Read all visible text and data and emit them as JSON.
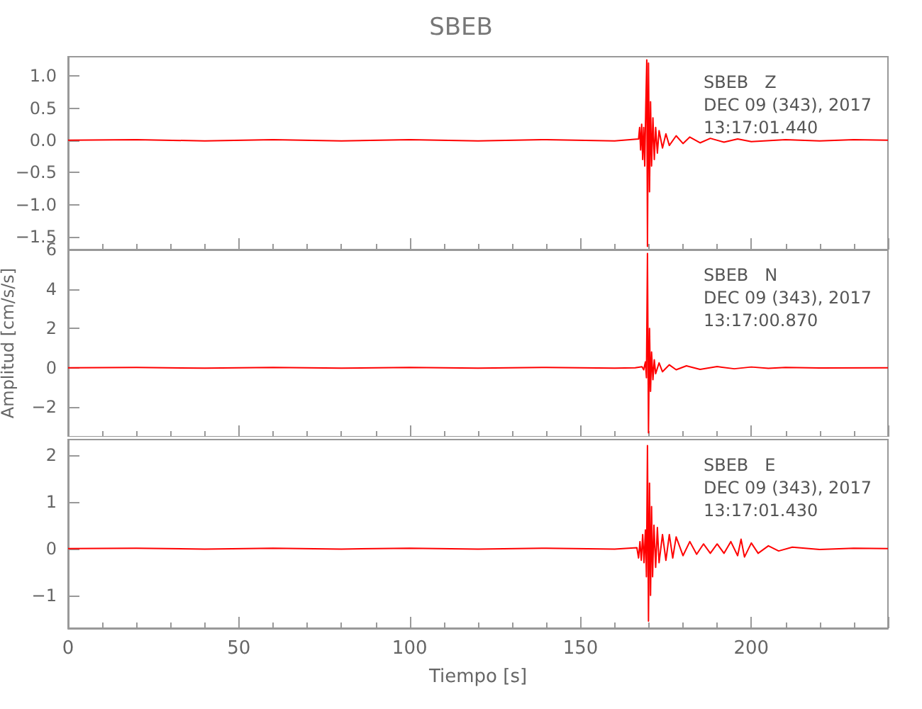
{
  "chart_data": [
    {
      "type": "line",
      "title": "SBEB",
      "tick_labels": "y",
      "xlim": [
        0,
        240
      ],
      "xticks": [
        0,
        50,
        100,
        150,
        200
      ],
      "ylim": [
        -1.7,
        1.3
      ],
      "yticks": [
        {
          "value": -1.5,
          "label": "−1.5"
        },
        {
          "value": -1,
          "label": "−1.0"
        },
        {
          "value": -0.5,
          "label": "−0.5"
        },
        {
          "value": 0,
          "label": "0.0"
        },
        {
          "value": 0.5,
          "label": "0.5"
        },
        {
          "value": 1,
          "label": "1.0"
        }
      ],
      "grid": false,
      "marker": "none",
      "line_style": "solid",
      "annotations": [
        "SBEB   Z",
        "DEC 09 (343), 2017",
        "13:17:01.440"
      ],
      "series": [
        {
          "color": "#ff0000",
          "x": [
            0,
            20,
            40,
            60,
            80,
            100,
            120,
            140,
            160,
            167,
            167.3,
            167.6,
            167.9,
            168.2,
            168.5,
            168.8,
            169.1,
            169.4,
            169.6,
            169.9,
            170.2,
            170.5,
            170.8,
            171.2,
            171.6,
            172,
            172.5,
            173,
            174,
            175,
            176,
            178,
            180,
            182,
            185,
            188,
            192,
            196,
            200,
            210,
            220,
            230,
            240
          ],
          "values": [
            0,
            0.01,
            -0.01,
            0.01,
            -0.01,
            0.01,
            -0.01,
            0.01,
            -0.01,
            0.02,
            0.2,
            -0.15,
            0.25,
            -0.3,
            0.2,
            -0.4,
            0.5,
            1.25,
            -1.65,
            1.2,
            -0.8,
            0.6,
            -0.4,
            0.35,
            -0.3,
            0.2,
            -0.2,
            0.15,
            -0.12,
            0.1,
            -0.08,
            0.07,
            -0.05,
            0.05,
            -0.04,
            0.03,
            -0.03,
            0.02,
            -0.02,
            0.01,
            -0.01,
            0.01,
            0
          ]
        }
      ]
    },
    {
      "type": "line",
      "ylabel": "Amplitud [cm/s/s]",
      "tick_labels": "y",
      "xlim": [
        0,
        240
      ],
      "xticks": [
        0,
        50,
        100,
        150,
        200
      ],
      "ylim": [
        -3.5,
        6
      ],
      "yticks": [
        {
          "value": -2,
          "label": "−2"
        },
        0,
        2,
        4,
        6
      ],
      "grid": false,
      "marker": "none",
      "line_style": "solid",
      "annotations": [
        "SBEB   N",
        "DEC 09 (343), 2017",
        "13:17:00.870"
      ],
      "series": [
        {
          "color": "#ff0000",
          "x": [
            0,
            20,
            40,
            60,
            80,
            100,
            120,
            140,
            160,
            166,
            168,
            168.5,
            169,
            169.3,
            169.6,
            169.9,
            170.2,
            170.5,
            170.8,
            171.2,
            171.6,
            172,
            173,
            174,
            176,
            178,
            181,
            185,
            190,
            195,
            200,
            205,
            210,
            220,
            240
          ],
          "values": [
            0,
            0.02,
            -0.02,
            0.02,
            -0.02,
            0.02,
            -0.02,
            0.02,
            -0.02,
            0,
            0.05,
            -0.1,
            0.3,
            -0.5,
            5.8,
            -3.3,
            2,
            -1.2,
            0.8,
            -0.6,
            0.4,
            -0.3,
            0.25,
            -0.2,
            0.15,
            -0.1,
            0.1,
            -0.08,
            0.06,
            -0.05,
            0.04,
            -0.03,
            0.02,
            -0.01,
            0
          ]
        }
      ]
    },
    {
      "type": "line",
      "xlabel": "Tiempo [s]",
      "xlim": [
        0,
        240
      ],
      "xticks": [
        0,
        50,
        100,
        150,
        200
      ],
      "ylim": [
        -1.7,
        2.33
      ],
      "yticks": [
        {
          "value": -1,
          "label": "−1"
        },
        0,
        1,
        2
      ],
      "grid": false,
      "marker": "none",
      "line_style": "solid",
      "annotations": [
        "SBEB   E",
        "DEC 09 (343), 2017",
        "13:17:01.430"
      ],
      "series": [
        {
          "color": "#ff0000",
          "x": [
            0,
            20,
            40,
            60,
            80,
            100,
            120,
            140,
            160,
            166.5,
            167,
            167.4,
            167.8,
            168.2,
            168.6,
            169,
            169.3,
            169.6,
            169.9,
            170.2,
            170.5,
            170.8,
            171.1,
            171.5,
            172,
            172.5,
            173,
            174,
            175,
            176,
            177,
            178,
            180,
            182,
            184,
            186,
            188,
            190,
            192,
            194,
            196,
            197,
            198,
            200,
            202,
            205,
            208,
            212,
            220,
            230,
            240
          ],
          "values": [
            0,
            0.01,
            -0.01,
            0.01,
            -0.01,
            0.01,
            -0.01,
            0.01,
            -0.01,
            0.02,
            -0.2,
            0.15,
            -0.25,
            0.3,
            -0.3,
            0.4,
            -0.6,
            2.2,
            -1.55,
            1.4,
            -1,
            0.9,
            -0.6,
            0.5,
            -0.4,
            0.45,
            -0.3,
            0.3,
            -0.25,
            0.3,
            -0.2,
            0.25,
            -0.15,
            0.15,
            -0.12,
            0.1,
            -0.1,
            0.1,
            -0.1,
            0.15,
            -0.15,
            0.2,
            -0.18,
            0.12,
            -0.1,
            0.06,
            -0.05,
            0.03,
            -0.02,
            0.01,
            0
          ]
        }
      ]
    }
  ]
}
